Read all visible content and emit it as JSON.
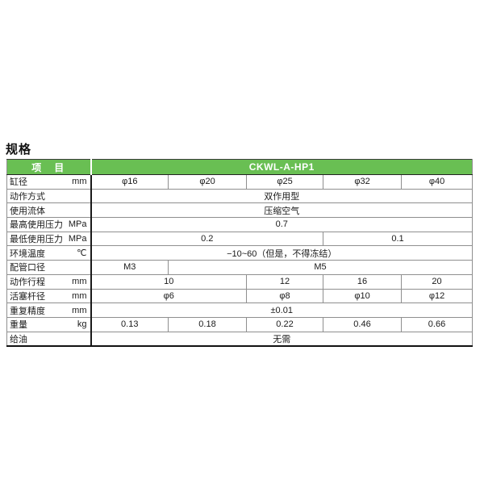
{
  "page": {
    "section_title": "规格"
  },
  "colors": {
    "header_green": "#69bf53",
    "header_text": "#ffffff",
    "grid_line": "#8f8f8f",
    "strong_line": "#1a1a1a"
  },
  "spec_table": {
    "header": {
      "item_label": "项　目",
      "model_label": "CKWL-A-HP1"
    },
    "column_count": 5,
    "rows": [
      {
        "label": "缸径",
        "unit": "mm",
        "cells": [
          {
            "text": "φ16",
            "span": 1
          },
          {
            "text": "φ20",
            "span": 1
          },
          {
            "text": "φ25",
            "span": 1
          },
          {
            "text": "φ32",
            "span": 1
          },
          {
            "text": "φ40",
            "span": 1
          }
        ]
      },
      {
        "label": "动作方式",
        "unit": "",
        "cells": [
          {
            "text": "双作用型",
            "span": 5
          }
        ]
      },
      {
        "label": "使用流体",
        "unit": "",
        "cells": [
          {
            "text": "压缩空气",
            "span": 5
          }
        ]
      },
      {
        "label": "最高使用压力",
        "unit": "MPa",
        "cells": [
          {
            "text": "0.7",
            "span": 5
          }
        ]
      },
      {
        "label": "最低使用压力",
        "unit": "MPa",
        "cells": [
          {
            "text": "0.2",
            "span": 3
          },
          {
            "text": "0.1",
            "span": 2
          }
        ]
      },
      {
        "label": "环境温度",
        "unit": "℃",
        "cells": [
          {
            "text": "−10~60（但是，不得冻结）",
            "span": 5
          }
        ]
      },
      {
        "label": "配管口径",
        "unit": "",
        "cells": [
          {
            "text": "M3",
            "span": 1
          },
          {
            "text": "M5",
            "span": 4
          }
        ]
      },
      {
        "label": "动作行程",
        "unit": "mm",
        "cells": [
          {
            "text": "10",
            "span": 2
          },
          {
            "text": "12",
            "span": 1
          },
          {
            "text": "16",
            "span": 1
          },
          {
            "text": "20",
            "span": 1
          }
        ]
      },
      {
        "label": "活塞杆径",
        "unit": "mm",
        "cells": [
          {
            "text": "φ6",
            "span": 2
          },
          {
            "text": "φ8",
            "span": 1
          },
          {
            "text": "φ10",
            "span": 1
          },
          {
            "text": "φ12",
            "span": 1
          }
        ]
      },
      {
        "label": "重复精度",
        "unit": "mm",
        "cells": [
          {
            "text": "±0.01",
            "span": 5
          }
        ]
      },
      {
        "label": "重量",
        "unit": "kg",
        "cells": [
          {
            "text": "0.13",
            "span": 1
          },
          {
            "text": "0.18",
            "span": 1
          },
          {
            "text": "0.22",
            "span": 1
          },
          {
            "text": "0.46",
            "span": 1
          },
          {
            "text": "0.66",
            "span": 1
          }
        ]
      },
      {
        "label": "给油",
        "unit": "",
        "cells": [
          {
            "text": "无需",
            "span": 5
          }
        ]
      }
    ]
  }
}
